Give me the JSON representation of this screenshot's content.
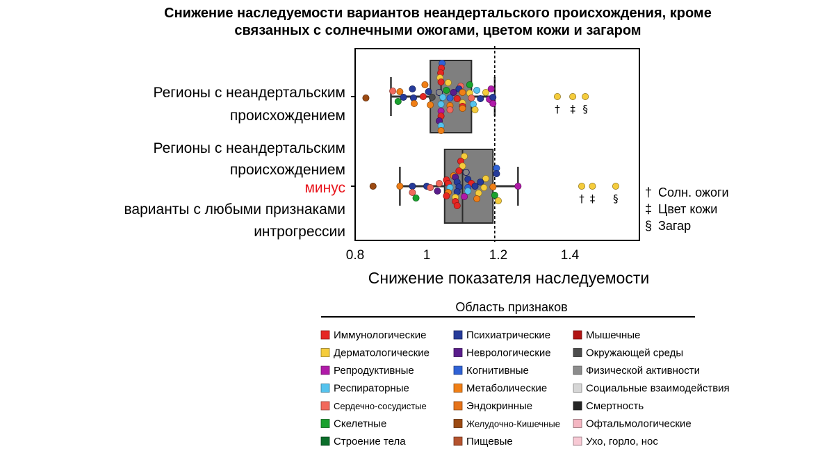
{
  "chart_data": {
    "type": "boxplot-swarm",
    "title_lines": [
      "Снижение наследуемости вариантов неандертальского происхождения, кроме",
      "связанных с солнечными ожогами, цветом кожи и загаром"
    ],
    "xlabel": "Снижение показателя наследуемости",
    "xlim": [
      0.8,
      1.6
    ],
    "xticks": [
      0.8,
      1.0,
      1.2,
      1.4
    ],
    "xtick_labels": [
      "0.8",
      "1",
      "1.2",
      "1.4"
    ],
    "reference_line": 1.19,
    "rows": [
      {
        "label_lines": [
          {
            "text": "Регионы с неандертальским",
            "color": "#000000"
          },
          {
            "text": "происхождением",
            "color": "#000000"
          }
        ],
        "box": {
          "q1": 1.01,
          "median": 1.04,
          "q3": 1.125,
          "whisker_low": 0.9,
          "whisker_high": 1.19
        },
        "points": [
          {
            "x": 1.043,
            "dy": -48,
            "c": "blue2"
          },
          {
            "x": 1.041,
            "dy": -41,
            "c": "red"
          },
          {
            "x": 1.039,
            "dy": -34,
            "c": "red"
          },
          {
            "x": 1.037,
            "dy": -27,
            "c": "derm"
          },
          {
            "x": 1.04,
            "dy": -21,
            "c": "red"
          },
          {
            "x": 1.06,
            "dy": -20,
            "c": "derm"
          },
          {
            "x": 1.095,
            "dy": -15,
            "c": "salmon"
          },
          {
            "x": 1.12,
            "dy": -17,
            "c": "green"
          },
          {
            "x": 0.995,
            "dy": -17,
            "c": "orange"
          },
          {
            "x": 0.96,
            "dy": -11,
            "c": "navy"
          },
          {
            "x": 0.905,
            "dy": -8,
            "c": "salmon"
          },
          {
            "x": 0.925,
            "dy": -7,
            "c": "orange"
          },
          {
            "x": 1.005,
            "dy": -7,
            "c": "navy"
          },
          {
            "x": 1.035,
            "dy": -6,
            "c": "purple"
          },
          {
            "x": 1.055,
            "dy": -9,
            "c": "green"
          },
          {
            "x": 1.075,
            "dy": -6,
            "c": "violet"
          },
          {
            "x": 1.09,
            "dy": -11,
            "c": "navy"
          },
          {
            "x": 1.1,
            "dy": -6,
            "c": "orange"
          },
          {
            "x": 1.14,
            "dy": -9,
            "c": "lblue"
          },
          {
            "x": 1.165,
            "dy": -6,
            "c": "derm"
          },
          {
            "x": 1.18,
            "dy": -11,
            "c": "magenta"
          },
          {
            "x": 1.12,
            "dy": -5,
            "c": "derm"
          },
          {
            "x": 0.83,
            "dy": 2,
            "c": "brown"
          },
          {
            "x": 0.935,
            "dy": 1,
            "c": "navy"
          },
          {
            "x": 0.963,
            "dy": 2,
            "c": "navy"
          },
          {
            "x": 0.99,
            "dy": 0,
            "c": "red"
          },
          {
            "x": 1.015,
            "dy": 1,
            "c": "gray"
          },
          {
            "x": 1.045,
            "dy": 1,
            "c": "lblue"
          },
          {
            "x": 1.065,
            "dy": 2,
            "c": "blue2"
          },
          {
            "x": 1.085,
            "dy": 3,
            "c": "red"
          },
          {
            "x": 1.125,
            "dy": 2,
            "c": "salmon"
          },
          {
            "x": 1.15,
            "dy": 3,
            "c": "navy"
          },
          {
            "x": 1.175,
            "dy": 4,
            "c": "magenta"
          },
          {
            "x": 1.185,
            "dy": 1,
            "c": "navy"
          },
          {
            "x": 0.92,
            "dy": 7,
            "c": "green"
          },
          {
            "x": 0.965,
            "dy": 10,
            "c": "orange"
          },
          {
            "x": 1.01,
            "dy": 12,
            "c": "orange"
          },
          {
            "x": 1.04,
            "dy": 11,
            "c": "lblue"
          },
          {
            "x": 1.065,
            "dy": 13,
            "c": "orange"
          },
          {
            "x": 1.1,
            "dy": 9,
            "c": "derm"
          },
          {
            "x": 1.1,
            "dy": 14,
            "c": "red"
          },
          {
            "x": 1.13,
            "dy": 11,
            "c": "lblue"
          },
          {
            "x": 1.185,
            "dy": 10,
            "c": "magenta"
          },
          {
            "x": 1.065,
            "dy": 19,
            "c": "salmon"
          },
          {
            "x": 1.1,
            "dy": 17,
            "c": "orange"
          },
          {
            "x": 1.135,
            "dy": 19,
            "c": "derm"
          },
          {
            "x": 1.04,
            "dy": 21,
            "c": "magenta"
          },
          {
            "x": 1.04,
            "dy": 28,
            "c": "red"
          },
          {
            "x": 1.035,
            "dy": 35,
            "c": "violet"
          },
          {
            "x": 1.04,
            "dy": 42,
            "c": "lblue"
          },
          {
            "x": 1.04,
            "dy": 49,
            "c": "orange"
          }
        ],
        "outliers": [
          {
            "x": 1.365,
            "symbol": "†"
          },
          {
            "x": 1.408,
            "symbol": "‡"
          },
          {
            "x": 1.443,
            "symbol": "§"
          }
        ]
      },
      {
        "label_lines": [
          {
            "text": "Регионы с неандертальским",
            "color": "#000000"
          },
          {
            "text": "происхождением",
            "color": "#000000"
          },
          {
            "text": "минус",
            "color": "#e8141b"
          },
          {
            "text": "варианты с любыми признаками",
            "color": "#000000"
          },
          {
            "text": "интрогрессии",
            "color": "#000000"
          }
        ],
        "box": {
          "q1": 1.05,
          "median": 1.1,
          "q3": 1.185,
          "whisker_low": 0.925,
          "whisker_high": 1.255
        },
        "points": [
          {
            "x": 1.105,
            "dy": -43,
            "c": "derm"
          },
          {
            "x": 1.095,
            "dy": -36,
            "c": "red"
          },
          {
            "x": 1.1,
            "dy": -29,
            "c": "derm"
          },
          {
            "x": 1.09,
            "dy": -22,
            "c": "red"
          },
          {
            "x": 1.11,
            "dy": -20,
            "c": "purple"
          },
          {
            "x": 1.075,
            "dy": -15,
            "c": "orange"
          },
          {
            "x": 1.195,
            "dy": -26,
            "c": "blue2"
          },
          {
            "x": 1.195,
            "dy": -18,
            "c": "navy"
          },
          {
            "x": 1.08,
            "dy": -13,
            "c": "violet"
          },
          {
            "x": 1.055,
            "dy": -9,
            "c": "red"
          },
          {
            "x": 1.115,
            "dy": -10,
            "c": "navy"
          },
          {
            "x": 1.165,
            "dy": -11,
            "c": "derm"
          },
          {
            "x": 1.035,
            "dy": -4,
            "c": "salmon"
          },
          {
            "x": 1.06,
            "dy": -4,
            "c": "red"
          },
          {
            "x": 1.085,
            "dy": -6,
            "c": "navy"
          },
          {
            "x": 1.125,
            "dy": -4,
            "c": "red"
          },
          {
            "x": 1.15,
            "dy": -6,
            "c": "navy"
          },
          {
            "x": 0.85,
            "dy": 0,
            "c": "brown"
          },
          {
            "x": 0.925,
            "dy": 0,
            "c": "orange"
          },
          {
            "x": 0.96,
            "dy": 0,
            "c": "navy"
          },
          {
            "x": 1.0,
            "dy": 0,
            "c": "navy"
          },
          {
            "x": 1.01,
            "dy": 2,
            "c": "salmon"
          },
          {
            "x": 1.065,
            "dy": 2,
            "c": "lblue"
          },
          {
            "x": 1.09,
            "dy": 1,
            "c": "navy"
          },
          {
            "x": 1.115,
            "dy": 2,
            "c": "blue2"
          },
          {
            "x": 1.135,
            "dy": 0,
            "c": "navy"
          },
          {
            "x": 1.16,
            "dy": 2,
            "c": "derm"
          },
          {
            "x": 1.185,
            "dy": 1,
            "c": "orange"
          },
          {
            "x": 1.255,
            "dy": 0,
            "c": "magenta"
          },
          {
            "x": 0.96,
            "dy": 9,
            "c": "salmon"
          },
          {
            "x": 1.03,
            "dy": 7,
            "c": "violet"
          },
          {
            "x": 1.06,
            "dy": 9,
            "c": "orange"
          },
          {
            "x": 1.085,
            "dy": 8,
            "c": "navy"
          },
          {
            "x": 1.115,
            "dy": 7,
            "c": "lblue"
          },
          {
            "x": 1.145,
            "dy": 10,
            "c": "derm"
          },
          {
            "x": 1.19,
            "dy": 13,
            "c": "green"
          },
          {
            "x": 0.97,
            "dy": 17,
            "c": "green"
          },
          {
            "x": 1.055,
            "dy": 14,
            "c": "red"
          },
          {
            "x": 1.08,
            "dy": 16,
            "c": "derm"
          },
          {
            "x": 1.105,
            "dy": 15,
            "c": "magenta"
          },
          {
            "x": 1.14,
            "dy": 18,
            "c": "orange"
          },
          {
            "x": 1.2,
            "dy": 21,
            "c": "derm"
          },
          {
            "x": 1.08,
            "dy": 22,
            "c": "red"
          },
          {
            "x": 1.085,
            "dy": 28,
            "c": "red"
          }
        ],
        "outliers": [
          {
            "x": 1.433,
            "symbol": "†"
          },
          {
            "x": 1.463,
            "symbol": "‡"
          },
          {
            "x": 1.528,
            "symbol": "§"
          }
        ]
      }
    ],
    "symbol_key": [
      {
        "symbol": "†",
        "label": "Солн. ожоги"
      },
      {
        "symbol": "‡",
        "label": "Цвет кожи"
      },
      {
        "symbol": "§",
        "label": "Загар"
      }
    ],
    "legend": {
      "title": "Область признаков",
      "columns": [
        [
          {
            "label": "Иммунологические",
            "color": "#e62623",
            "key": "red"
          },
          {
            "label": "Дерматологические",
            "color": "#f5cc3c",
            "key": "derm"
          },
          {
            "label": "Репродуктивные",
            "color": "#b01aa8",
            "key": "magenta"
          },
          {
            "label": "Респираторные",
            "color": "#55c3ee",
            "key": "lblue"
          },
          {
            "label": "Сердечно-сосудистые",
            "color": "#f2695c",
            "key": "salmon",
            "small": true
          },
          {
            "label": "Скелетные",
            "color": "#1aa12e",
            "key": "green"
          },
          {
            "label": "Строение тела",
            "color": "#0b6e2a",
            "key": "dgreen"
          }
        ],
        [
          {
            "label": "Психиатрические",
            "color": "#263b9a",
            "key": "navy"
          },
          {
            "label": "Неврологические",
            "color": "#5a1d8c",
            "key": "violet"
          },
          {
            "label": "Когнитивные",
            "color": "#2f62d6",
            "key": "blue2"
          },
          {
            "label": "Метаболические",
            "color": "#f07f16",
            "key": "orange"
          },
          {
            "label": "Эндокринные",
            "color": "#e6731a",
            "key": "orange2"
          },
          {
            "label": "Желудочно-Кишечные",
            "color": "#9c4a12",
            "key": "brown",
            "small": true
          },
          {
            "label": "Пищевые",
            "color": "#b5532e",
            "key": "brown2"
          }
        ],
        [
          {
            "label": "Мышечные",
            "color": "#b21414",
            "key": "dred"
          },
          {
            "label": "Окружающей среды",
            "color": "#4d4d4d",
            "key": "gray"
          },
          {
            "label": "Физической активности",
            "color": "#8c8c8c",
            "key": "gray2"
          },
          {
            "label": "Социальные взаимодействия",
            "color": "#d6d6d6",
            "key": "lgray"
          },
          {
            "label": "Смертность",
            "color": "#262626",
            "key": "black"
          },
          {
            "label": "Офтальмологические",
            "color": "#f4b6c2",
            "key": "pink"
          },
          {
            "label": "Ухо, горло, нос",
            "color": "#f7c9d4",
            "key": "pink2"
          }
        ]
      ]
    }
  }
}
